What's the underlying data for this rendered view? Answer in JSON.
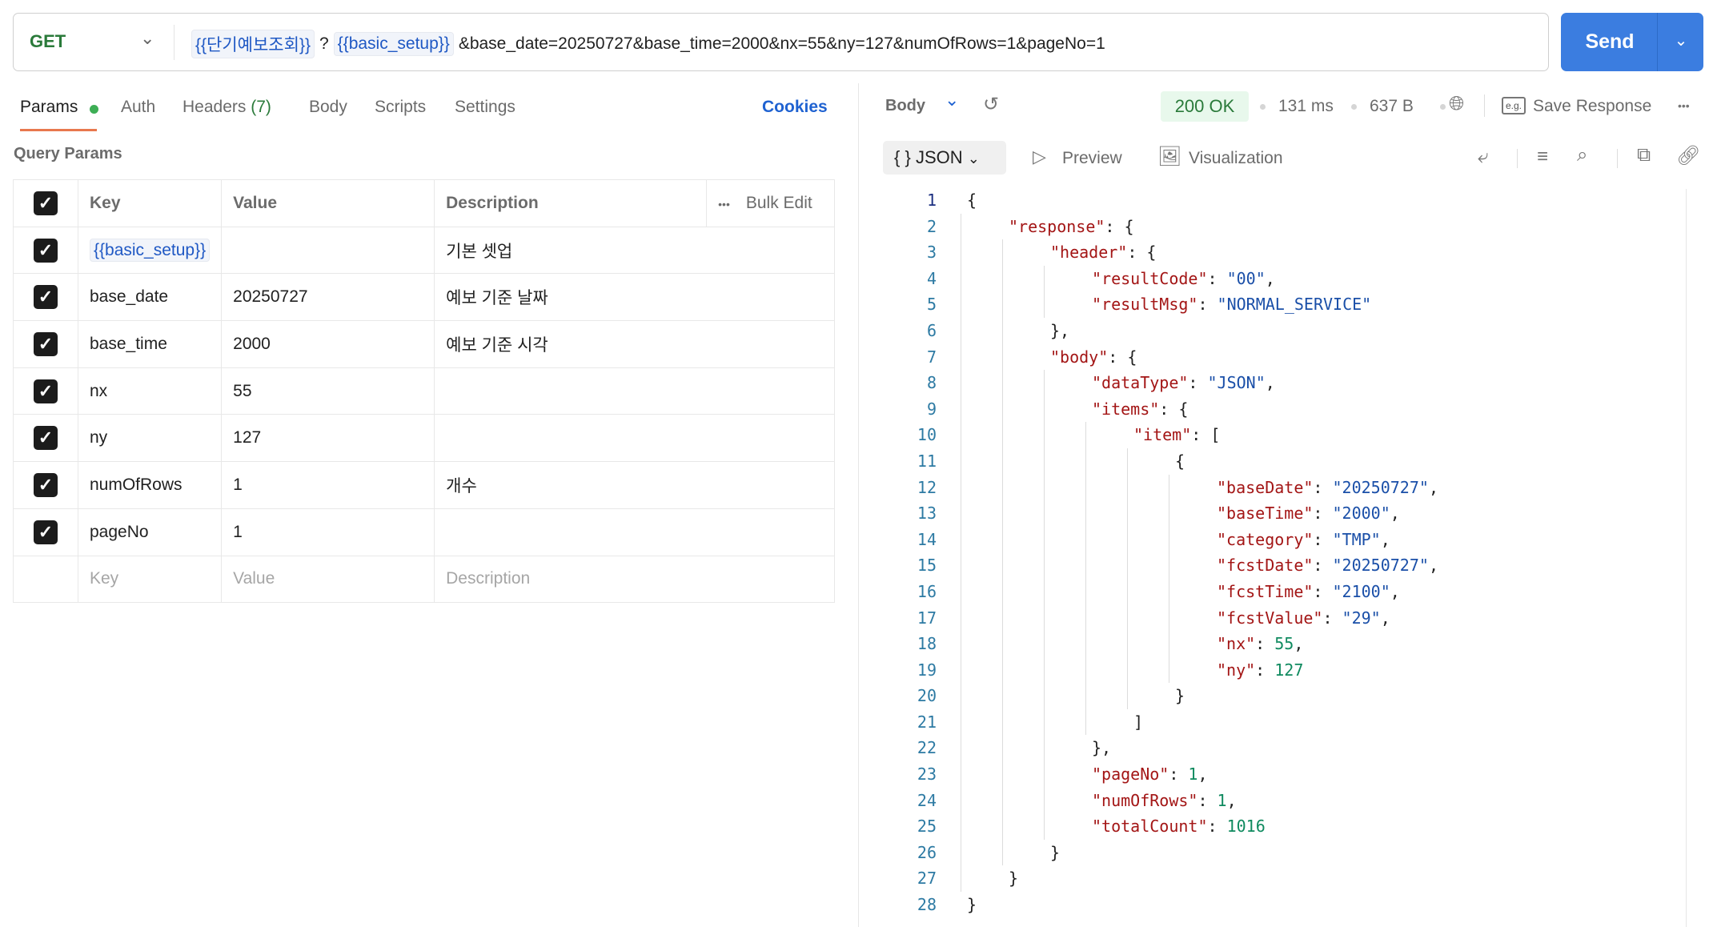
{
  "request": {
    "method": "GET",
    "url_parts": [
      {
        "type": "var",
        "text": "{{단기예보조회}}"
      },
      {
        "type": "text",
        "text": "?"
      },
      {
        "type": "var",
        "text": "{{basic_setup}}"
      },
      {
        "type": "text",
        "text": "&base_date=20250727&base_time=2000&nx=55&ny=127&numOfRows=1&pageNo=1"
      }
    ],
    "send_label": "Send"
  },
  "tabs": {
    "params": "Params",
    "auth": "Auth",
    "headers": "Headers",
    "headers_count": "(7)",
    "body": "Body",
    "scripts": "Scripts",
    "settings": "Settings",
    "cookies": "Cookies"
  },
  "query": {
    "title": "Query Params",
    "headers": {
      "key": "Key",
      "value": "Value",
      "description": "Description",
      "bulk": "Bulk Edit"
    },
    "rows": [
      {
        "key": "{{basic_setup}}",
        "value": "",
        "description": "기본 셋업",
        "is_var": true,
        "checked": true
      },
      {
        "key": "base_date",
        "value": "20250727",
        "description": "예보 기준 날짜",
        "checked": true
      },
      {
        "key": "base_time",
        "value": "2000",
        "description": "예보 기준 시각",
        "checked": true
      },
      {
        "key": "nx",
        "value": "55",
        "description": "",
        "checked": true
      },
      {
        "key": "ny",
        "value": "127",
        "description": "",
        "checked": true
      },
      {
        "key": "numOfRows",
        "value": "1",
        "description": "개수",
        "checked": true
      },
      {
        "key": "pageNo",
        "value": "1",
        "description": "",
        "checked": true
      }
    ],
    "placeholder": {
      "key": "Key",
      "value": "Value",
      "description": "Description"
    }
  },
  "response": {
    "body_label": "Body",
    "status": "200 OK",
    "time": "131 ms",
    "size": "637 B",
    "save": "Save Response",
    "format": "JSON",
    "preview": "Preview",
    "visualization": "Visualization",
    "colors": {
      "key": "#a31515",
      "string": "#1a4fa8",
      "number": "#0f8a5f",
      "status_bg": "#e8f8ec",
      "accent": "#3b7de0"
    },
    "lines": [
      {
        "i": 0,
        "t": [
          [
            "p",
            "{"
          ]
        ]
      },
      {
        "i": 1,
        "t": [
          [
            "k",
            "\"response\""
          ],
          [
            "p",
            ": {"
          ]
        ]
      },
      {
        "i": 2,
        "t": [
          [
            "k",
            "\"header\""
          ],
          [
            "p",
            ": {"
          ]
        ]
      },
      {
        "i": 3,
        "t": [
          [
            "k",
            "\"resultCode\""
          ],
          [
            "p",
            ": "
          ],
          [
            "s",
            "\"00\""
          ],
          [
            "p",
            ","
          ]
        ]
      },
      {
        "i": 3,
        "t": [
          [
            "k",
            "\"resultMsg\""
          ],
          [
            "p",
            ": "
          ],
          [
            "s",
            "\"NORMAL_SERVICE\""
          ]
        ]
      },
      {
        "i": 2,
        "t": [
          [
            "p",
            "},"
          ]
        ]
      },
      {
        "i": 2,
        "t": [
          [
            "k",
            "\"body\""
          ],
          [
            "p",
            ": {"
          ]
        ]
      },
      {
        "i": 3,
        "t": [
          [
            "k",
            "\"dataType\""
          ],
          [
            "p",
            ": "
          ],
          [
            "s",
            "\"JSON\""
          ],
          [
            "p",
            ","
          ]
        ]
      },
      {
        "i": 3,
        "t": [
          [
            "k",
            "\"items\""
          ],
          [
            "p",
            ": {"
          ]
        ]
      },
      {
        "i": 4,
        "t": [
          [
            "k",
            "\"item\""
          ],
          [
            "p",
            ": ["
          ]
        ]
      },
      {
        "i": 5,
        "t": [
          [
            "p",
            "{"
          ]
        ]
      },
      {
        "i": 6,
        "t": [
          [
            "k",
            "\"baseDate\""
          ],
          [
            "p",
            ": "
          ],
          [
            "s",
            "\"20250727\""
          ],
          [
            "p",
            ","
          ]
        ]
      },
      {
        "i": 6,
        "t": [
          [
            "k",
            "\"baseTime\""
          ],
          [
            "p",
            ": "
          ],
          [
            "s",
            "\"2000\""
          ],
          [
            "p",
            ","
          ]
        ]
      },
      {
        "i": 6,
        "t": [
          [
            "k",
            "\"category\""
          ],
          [
            "p",
            ": "
          ],
          [
            "s",
            "\"TMP\""
          ],
          [
            "p",
            ","
          ]
        ]
      },
      {
        "i": 6,
        "t": [
          [
            "k",
            "\"fcstDate\""
          ],
          [
            "p",
            ": "
          ],
          [
            "s",
            "\"20250727\""
          ],
          [
            "p",
            ","
          ]
        ]
      },
      {
        "i": 6,
        "t": [
          [
            "k",
            "\"fcstTime\""
          ],
          [
            "p",
            ": "
          ],
          [
            "s",
            "\"2100\""
          ],
          [
            "p",
            ","
          ]
        ]
      },
      {
        "i": 6,
        "t": [
          [
            "k",
            "\"fcstValue\""
          ],
          [
            "p",
            ": "
          ],
          [
            "s",
            "\"29\""
          ],
          [
            "p",
            ","
          ]
        ]
      },
      {
        "i": 6,
        "t": [
          [
            "k",
            "\"nx\""
          ],
          [
            "p",
            ": "
          ],
          [
            "n",
            "55"
          ],
          [
            "p",
            ","
          ]
        ]
      },
      {
        "i": 6,
        "t": [
          [
            "k",
            "\"ny\""
          ],
          [
            "p",
            ": "
          ],
          [
            "n",
            "127"
          ]
        ]
      },
      {
        "i": 5,
        "t": [
          [
            "p",
            "}"
          ]
        ]
      },
      {
        "i": 4,
        "t": [
          [
            "p",
            "]"
          ]
        ]
      },
      {
        "i": 3,
        "t": [
          [
            "p",
            "},"
          ]
        ]
      },
      {
        "i": 3,
        "t": [
          [
            "k",
            "\"pageNo\""
          ],
          [
            "p",
            ": "
          ],
          [
            "n",
            "1"
          ],
          [
            "p",
            ","
          ]
        ]
      },
      {
        "i": 3,
        "t": [
          [
            "k",
            "\"numOfRows\""
          ],
          [
            "p",
            ": "
          ],
          [
            "n",
            "1"
          ],
          [
            "p",
            ","
          ]
        ]
      },
      {
        "i": 3,
        "t": [
          [
            "k",
            "\"totalCount\""
          ],
          [
            "p",
            ": "
          ],
          [
            "n",
            "1016"
          ]
        ]
      },
      {
        "i": 2,
        "t": [
          [
            "p",
            "}"
          ]
        ]
      },
      {
        "i": 1,
        "t": [
          [
            "p",
            "}"
          ]
        ]
      },
      {
        "i": 0,
        "t": [
          [
            "p",
            "}"
          ]
        ]
      }
    ]
  }
}
